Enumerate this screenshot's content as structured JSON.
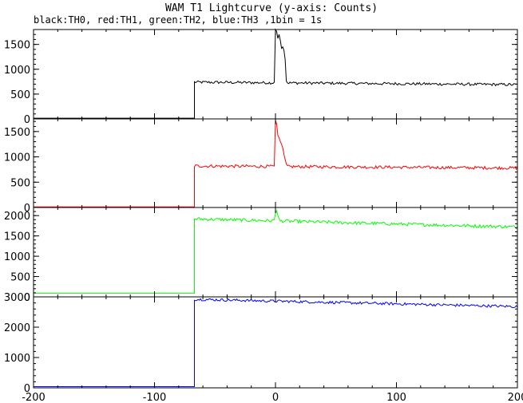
{
  "chart_data": {
    "type": "line",
    "title": "WAM T1 Lightcurve (y-axis: Counts)",
    "subtitle": "black:TH0, red:TH1, green:TH2, blue:TH3 ,1bin = 1s",
    "xlim": [
      -200,
      200
    ],
    "x_ticks": [
      -200,
      -100,
      0,
      100,
      200
    ],
    "panels": [
      {
        "name": "TH0",
        "color": "#000000",
        "ylim": [
          0,
          1800
        ],
        "y_ticks": [
          0,
          500,
          1000,
          1500
        ],
        "pre_level": 15,
        "step_x": -67,
        "post_level": 740,
        "end_level": 690,
        "noise": 28,
        "peak": [
          [
            -1,
            740
          ],
          [
            0,
            1800
          ],
          [
            1,
            1760
          ],
          [
            2,
            1620
          ],
          [
            3,
            1700
          ],
          [
            4,
            1580
          ],
          [
            5,
            1420
          ],
          [
            6,
            1450
          ],
          [
            7,
            1380
          ],
          [
            8,
            1200
          ],
          [
            9,
            760
          ]
        ]
      },
      {
        "name": "TH1",
        "color": "#ff0000",
        "ylim": [
          0,
          1750
        ],
        "y_ticks": [
          0,
          500,
          1000,
          1500
        ],
        "pre_level": 12,
        "step_x": -67,
        "post_level": 820,
        "end_level": 780,
        "noise": 30,
        "peak": [
          [
            -1,
            820
          ],
          [
            0,
            1720
          ],
          [
            1,
            1650
          ],
          [
            2,
            1420
          ],
          [
            3,
            1380
          ],
          [
            4,
            1300
          ],
          [
            5,
            1250
          ],
          [
            6,
            1180
          ],
          [
            7,
            1050
          ],
          [
            8,
            950
          ],
          [
            9,
            860
          ]
        ]
      },
      {
        "name": "TH2",
        "color": "#00ff00",
        "ylim": [
          0,
          2200
        ],
        "y_ticks": [
          0,
          500,
          1000,
          1500,
          2000
        ],
        "pre_level": 90,
        "step_x": -67,
        "post_level": 1920,
        "end_level": 1720,
        "noise": 40,
        "peak": [
          [
            -1,
            1900
          ],
          [
            0,
            2050
          ],
          [
            1,
            2120
          ],
          [
            2,
            2000
          ],
          [
            3,
            1930
          ]
        ]
      },
      {
        "name": "TH3",
        "color": "#0000ff",
        "ylim": [
          0,
          3000
        ],
        "y_ticks": [
          0,
          1000,
          2000,
          3000
        ],
        "pre_level": 40,
        "step_x": -67,
        "post_level": 2920,
        "end_level": 2680,
        "noise": 45,
        "peak": []
      }
    ]
  }
}
